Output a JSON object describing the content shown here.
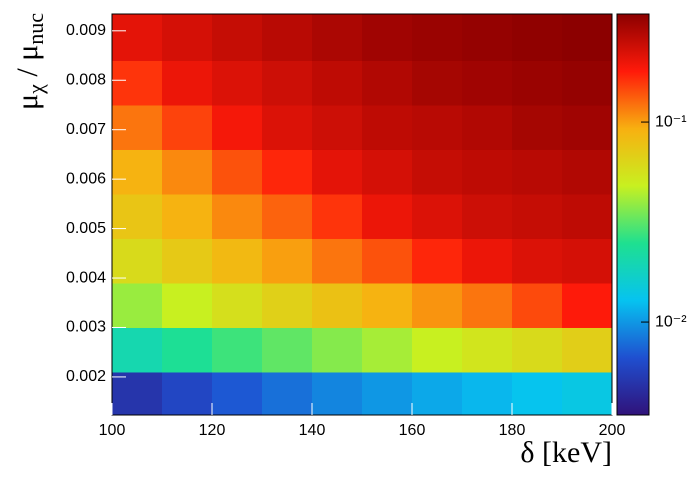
{
  "chart_data": {
    "type": "heatmap",
    "x_label": "δ [keV]",
    "y_label": [
      "μ",
      "χ",
      " / μ",
      "nuc"
    ],
    "xbins": [
      100,
      110,
      120,
      130,
      140,
      150,
      160,
      170,
      180,
      190,
      200
    ],
    "ybins": [
      0.00123,
      0.0021,
      0.003,
      0.0039,
      0.0048,
      0.0057,
      0.0066,
      0.0075,
      0.0084,
      0.00934
    ],
    "values": [
      [
        0.005,
        0.006,
        0.007,
        0.008,
        0.009,
        0.01,
        0.011,
        0.012,
        0.013,
        0.014
      ],
      [
        0.02,
        0.024,
        0.028,
        0.032,
        0.037,
        0.042,
        0.048,
        0.054,
        0.06,
        0.068
      ],
      [
        0.04,
        0.048,
        0.057,
        0.067,
        0.078,
        0.09,
        0.105,
        0.12,
        0.145,
        0.18
      ],
      [
        0.06,
        0.072,
        0.085,
        0.1,
        0.12,
        0.14,
        0.17,
        0.2,
        0.22,
        0.23
      ],
      [
        0.075,
        0.09,
        0.11,
        0.13,
        0.16,
        0.2,
        0.22,
        0.24,
        0.25,
        0.26
      ],
      [
        0.09,
        0.11,
        0.14,
        0.17,
        0.21,
        0.23,
        0.25,
        0.26,
        0.27,
        0.28
      ],
      [
        0.12,
        0.15,
        0.19,
        0.22,
        0.24,
        0.26,
        0.27,
        0.28,
        0.3,
        0.31
      ],
      [
        0.16,
        0.2,
        0.22,
        0.24,
        0.26,
        0.28,
        0.3,
        0.31,
        0.32,
        0.33
      ],
      [
        0.21,
        0.23,
        0.25,
        0.27,
        0.29,
        0.31,
        0.32,
        0.33,
        0.34,
        0.35
      ]
    ],
    "xlim": [
      100,
      200
    ],
    "ylim": [
      0.00123,
      0.00934
    ],
    "xticks": [
      100,
      120,
      140,
      160,
      180,
      200
    ],
    "yticks": [
      0.002,
      0.003,
      0.004,
      0.005,
      0.006,
      0.007,
      0.008,
      0.009
    ],
    "zlim": [
      0.00343,
      0.347
    ],
    "zlog": true,
    "zticks": [
      {
        "value": 0.01,
        "label": "10⁻²"
      },
      {
        "value": 0.1,
        "label": "10⁻¹"
      }
    ],
    "colormap": [
      "#30127a",
      "#1f4fd0",
      "#06c3f0",
      "#1ee090",
      "#c8f020",
      "#f8b010",
      "#ff1a0a",
      "#8c0000"
    ]
  }
}
